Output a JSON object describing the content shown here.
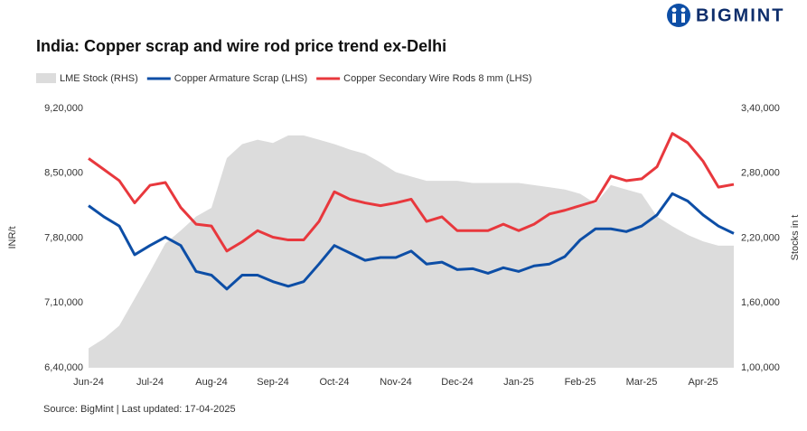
{
  "logo": "BIGMINT",
  "chart_data": {
    "type": "line",
    "title": "India: Copper scrap and wire rod price trend ex-Delhi",
    "source": "Source: BigMint | Last updated: 17-04-2025",
    "ylabel": "INR/t",
    "y2label": "Stocks in t",
    "x": [
      "Jun-24",
      null,
      null,
      null,
      "Jul-24",
      null,
      null,
      null,
      "Aug-24",
      null,
      null,
      null,
      "Sep-24",
      null,
      null,
      null,
      "Oct-24",
      null,
      null,
      null,
      "Nov-24",
      null,
      null,
      null,
      "Dec-24",
      null,
      null,
      null,
      "Jan-25",
      null,
      null,
      null,
      "Feb-25",
      null,
      null,
      null,
      "Mar-25",
      null,
      null,
      null,
      "Apr-25",
      null,
      null
    ],
    "ylim": [
      640000,
      920000
    ],
    "yticks": [
      {
        "value": 640000,
        "label": "6,40,000"
      },
      {
        "value": 710000,
        "label": "7,10,000"
      },
      {
        "value": 780000,
        "label": "7,80,000"
      },
      {
        "value": 850000,
        "label": "8,50,000"
      },
      {
        "value": 920000,
        "label": "9,20,000"
      }
    ],
    "y2lim": [
      100000,
      340000
    ],
    "y2ticks": [
      {
        "value": 100000,
        "label": "1,00,000"
      },
      {
        "value": 160000,
        "label": "1,60,000"
      },
      {
        "value": 220000,
        "label": "2,20,000"
      },
      {
        "value": 280000,
        "label": "2,80,000"
      },
      {
        "value": 340000,
        "label": "3,40,000"
      }
    ],
    "series": [
      {
        "name": "LME Stock (RHS)",
        "color": "#dcdcdc",
        "axis": "y2",
        "style": "area",
        "values": [
          118000,
          127000,
          139000,
          164000,
          189000,
          215000,
          227000,
          240000,
          248000,
          294000,
          307000,
          311000,
          308000,
          315000,
          315000,
          311000,
          307000,
          302000,
          298000,
          290000,
          281000,
          277000,
          273000,
          273000,
          273000,
          271000,
          271000,
          271000,
          271000,
          269000,
          267000,
          265000,
          261000,
          252000,
          269000,
          265000,
          261000,
          240000,
          231000,
          223000,
          217000,
          213000,
          213000
        ]
      },
      {
        "name": "Copper Armature Scrap (LHS)",
        "color": "#0d4ea6",
        "style": "line",
        "values": [
          815000,
          803000,
          793000,
          762000,
          772000,
          781000,
          772000,
          744000,
          740000,
          725000,
          740000,
          740000,
          733000,
          728000,
          733000,
          752000,
          772000,
          764000,
          756000,
          759000,
          759000,
          766000,
          752000,
          754000,
          746000,
          747000,
          742000,
          748000,
          744000,
          750000,
          752000,
          760000,
          778000,
          790000,
          790000,
          787000,
          793000,
          805000,
          828000,
          820000,
          805000,
          793000,
          785000
        ]
      },
      {
        "name": "Copper Secondary Wire Rods 8 mm (LHS)",
        "color": "#e8383d",
        "style": "line",
        "values": [
          866000,
          854000,
          842000,
          818000,
          837000,
          840000,
          813000,
          795000,
          793000,
          766000,
          776000,
          788000,
          781000,
          778000,
          778000,
          798000,
          830000,
          822000,
          818000,
          815000,
          818000,
          822000,
          798000,
          803000,
          788000,
          788000,
          788000,
          795000,
          788000,
          795000,
          806000,
          810000,
          815000,
          820000,
          847000,
          842000,
          844000,
          857000,
          893000,
          883000,
          863000,
          835000,
          838000
        ]
      }
    ]
  }
}
